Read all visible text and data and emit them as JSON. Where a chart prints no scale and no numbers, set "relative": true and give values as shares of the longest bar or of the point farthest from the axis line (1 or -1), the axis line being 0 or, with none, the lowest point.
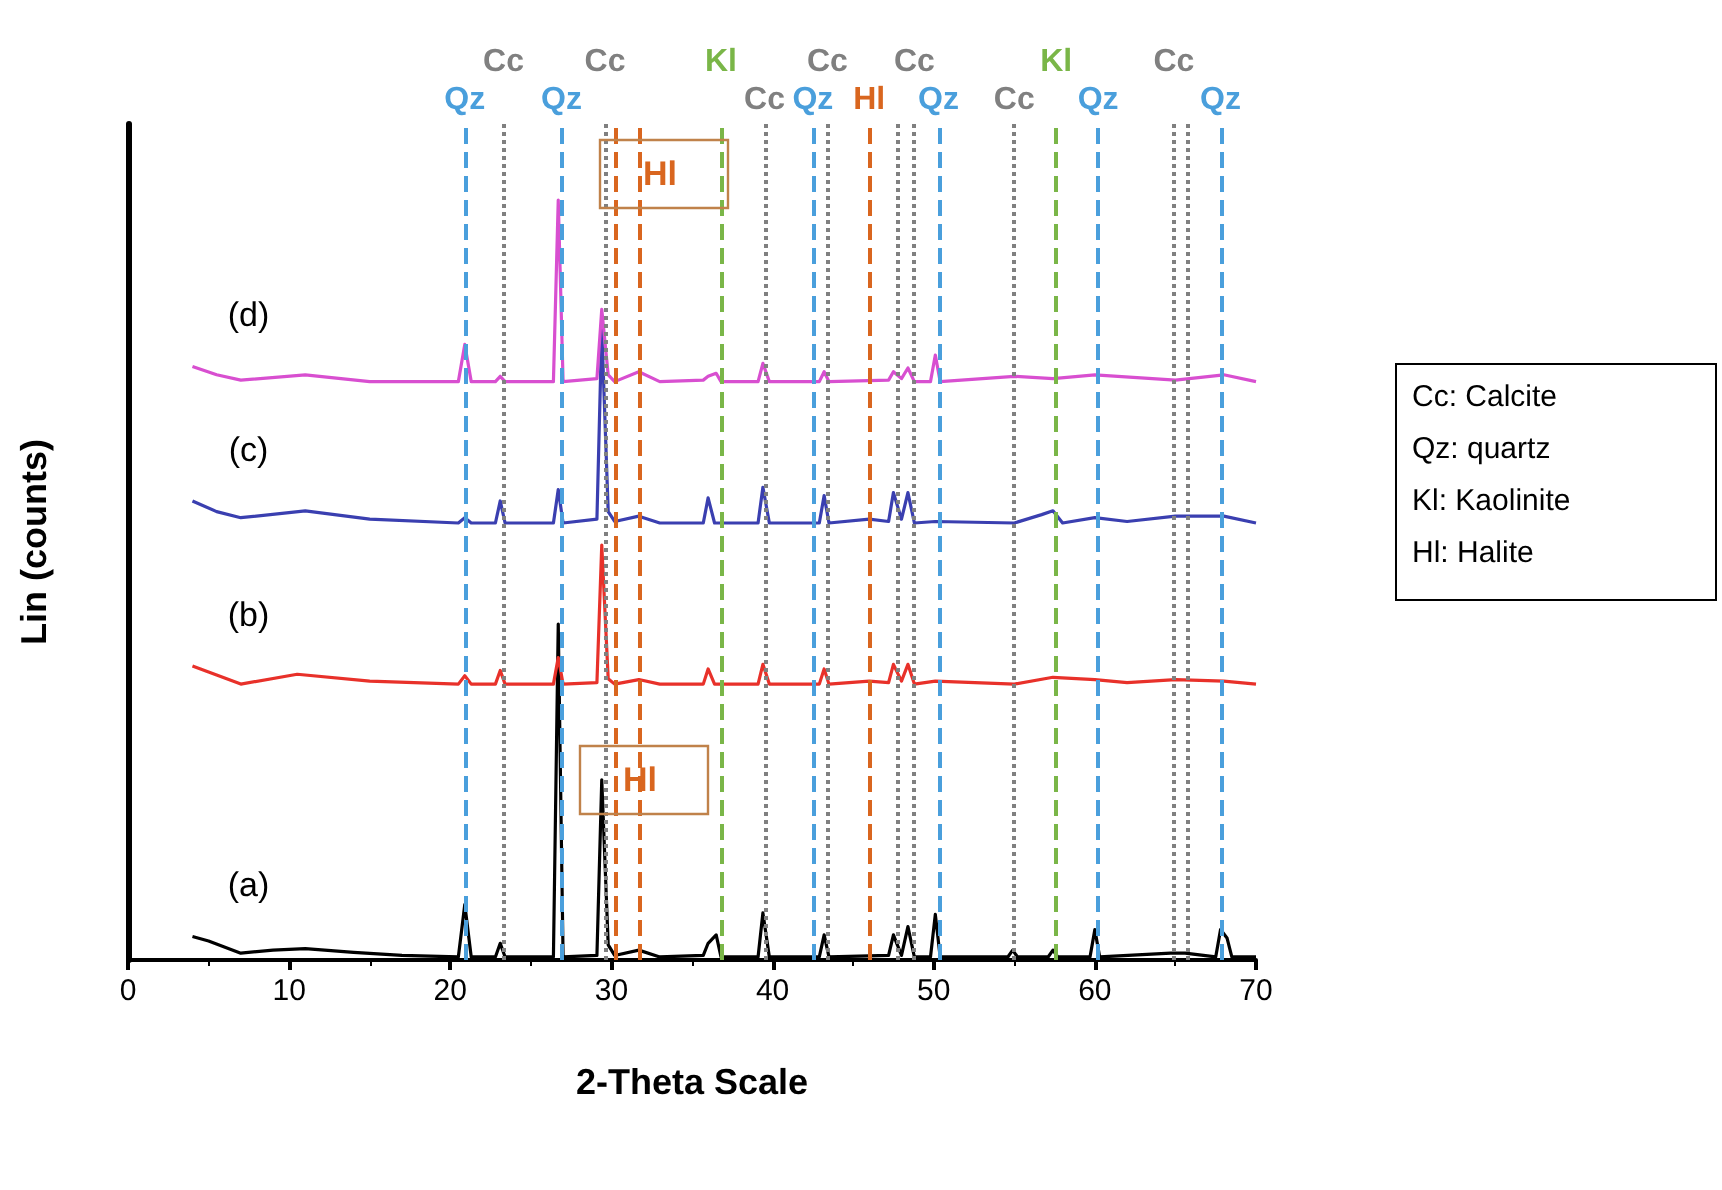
{
  "chart_data": {
    "type": "line",
    "relative": true,
    "xlabel": "2-Theta Scale",
    "ylabel": "Lin (counts)",
    "xlim": [
      0,
      70
    ],
    "xticks": [
      0,
      10,
      20,
      30,
      40,
      50,
      60,
      70
    ],
    "grid": false,
    "legend": false,
    "marker": "none",
    "line_style": "solid",
    "series": [
      {
        "name": "(a)",
        "color": "#000000",
        "x": [
          4,
          5,
          7,
          9,
          11,
          14,
          17,
          20.5,
          20.9,
          21.3,
          22.8,
          23.1,
          23.4,
          26.4,
          26.7,
          27.0,
          29.1,
          29.4,
          29.8,
          30.2,
          31.7,
          33,
          35.7,
          36.0,
          36.5,
          36.8,
          39.1,
          39.4,
          39.8,
          42.9,
          43.2,
          43.5,
          47.2,
          47.5,
          48.0,
          48.4,
          48.8,
          49.8,
          50.1,
          50.4,
          54.6,
          54.9,
          55.2,
          57.1,
          57.4,
          57.7,
          59.7,
          60.0,
          60.3,
          64.7,
          65.6,
          67.5,
          67.8,
          68.2,
          68.5,
          70
        ],
        "values": [
          0.031,
          0.025,
          0.009,
          0.013,
          0.015,
          0.01,
          0.006,
          0.004,
          0.073,
          0.004,
          0.004,
          0.022,
          0.004,
          0.004,
          0.442,
          0.004,
          0.006,
          0.237,
          0.02,
          0.006,
          0.013,
          0.004,
          0.006,
          0.022,
          0.033,
          0.004,
          0.004,
          0.062,
          0.004,
          0.004,
          0.033,
          0.004,
          0.006,
          0.033,
          0.006,
          0.044,
          0.004,
          0.004,
          0.06,
          0.004,
          0.004,
          0.013,
          0.004,
          0.004,
          0.013,
          0.004,
          0.004,
          0.04,
          0.004,
          0.009,
          0.009,
          0.004,
          0.04,
          0.029,
          0.004,
          0.004
        ]
      },
      {
        "name": "(b)",
        "color": "#e8312a",
        "x": [
          4,
          5.5,
          7,
          10.5,
          15,
          20.5,
          20.9,
          21.3,
          22.8,
          23.1,
          23.4,
          26.4,
          26.7,
          27.0,
          29.1,
          29.4,
          29.8,
          30.2,
          31.7,
          33,
          35.7,
          36.0,
          36.4,
          39.1,
          39.4,
          39.8,
          42.9,
          43.2,
          43.5,
          46,
          47.2,
          47.5,
          48.0,
          48.4,
          48.8,
          50.1,
          55,
          57.4,
          60,
          62,
          65,
          68,
          70
        ],
        "values": [
          0.387,
          0.375,
          0.363,
          0.376,
          0.367,
          0.363,
          0.374,
          0.363,
          0.363,
          0.381,
          0.363,
          0.363,
          0.398,
          0.363,
          0.365,
          0.546,
          0.37,
          0.363,
          0.369,
          0.363,
          0.363,
          0.383,
          0.363,
          0.363,
          0.389,
          0.363,
          0.363,
          0.383,
          0.363,
          0.367,
          0.365,
          0.389,
          0.367,
          0.389,
          0.363,
          0.367,
          0.363,
          0.372,
          0.369,
          0.365,
          0.369,
          0.367,
          0.363
        ]
      },
      {
        "name": "(c)",
        "color": "#3a3fb0",
        "x": [
          4,
          5.5,
          7,
          11,
          15,
          20.5,
          20.9,
          21.3,
          22.8,
          23.1,
          23.4,
          26.4,
          26.7,
          27.0,
          29.1,
          29.4,
          29.8,
          30.2,
          31.7,
          33,
          35.7,
          36.0,
          36.4,
          39.1,
          39.4,
          39.8,
          42.9,
          43.2,
          43.5,
          46,
          47.2,
          47.5,
          48.0,
          48.4,
          48.8,
          50.1,
          55,
          56.7,
          57.4,
          58,
          60,
          62,
          65,
          68,
          70
        ],
        "values": [
          0.604,
          0.59,
          0.582,
          0.591,
          0.58,
          0.575,
          0.582,
          0.575,
          0.575,
          0.604,
          0.575,
          0.575,
          0.619,
          0.575,
          0.58,
          0.83,
          0.59,
          0.577,
          0.584,
          0.575,
          0.575,
          0.608,
          0.575,
          0.575,
          0.622,
          0.575,
          0.575,
          0.611,
          0.575,
          0.58,
          0.577,
          0.615,
          0.58,
          0.615,
          0.575,
          0.577,
          0.575,
          0.586,
          0.591,
          0.575,
          0.582,
          0.577,
          0.584,
          0.584,
          0.575
        ]
      },
      {
        "name": "(d)",
        "color": "#d84fd0",
        "x": [
          4,
          5.5,
          7,
          11,
          15,
          20.5,
          20.9,
          21.3,
          22.8,
          23.1,
          23.4,
          26.4,
          26.7,
          27.0,
          29.1,
          29.4,
          29.8,
          30.2,
          31.7,
          33,
          35.7,
          36.0,
          36.5,
          36.8,
          39.1,
          39.4,
          39.8,
          42.9,
          43.2,
          43.5,
          47.2,
          47.5,
          48.0,
          48.4,
          48.8,
          49.8,
          50.1,
          50.4,
          55,
          57.4,
          60,
          65,
          68,
          70
        ],
        "values": [
          0.781,
          0.77,
          0.763,
          0.77,
          0.761,
          0.761,
          0.81,
          0.761,
          0.761,
          0.768,
          0.761,
          0.761,
          1.0,
          0.761,
          0.765,
          0.856,
          0.77,
          0.761,
          0.774,
          0.761,
          0.763,
          0.768,
          0.772,
          0.761,
          0.761,
          0.785,
          0.761,
          0.761,
          0.774,
          0.761,
          0.763,
          0.774,
          0.765,
          0.779,
          0.761,
          0.761,
          0.796,
          0.761,
          0.768,
          0.765,
          0.77,
          0.763,
          0.77,
          0.761
        ]
      }
    ],
    "ref_lines": [
      {
        "axis": "x",
        "value": 20.9,
        "label": "Qz",
        "color": "#4a9fdc",
        "line_style": "dashed"
      },
      {
        "axis": "x",
        "value": 26.9,
        "label": "Qz",
        "color": "#4a9fdc",
        "line_style": "dashed"
      },
      {
        "axis": "x",
        "value": 42.5,
        "label": "Qz",
        "color": "#4a9fdc",
        "line_style": "dashed"
      },
      {
        "axis": "x",
        "value": 50.3,
        "label": "Qz",
        "color": "#4a9fdc",
        "line_style": "dashed"
      },
      {
        "axis": "x",
        "value": 60.2,
        "label": "Qz",
        "color": "#4a9fdc",
        "line_style": "dashed"
      },
      {
        "axis": "x",
        "value": 67.8,
        "label": "Qz",
        "color": "#4a9fdc",
        "line_style": "dashed"
      },
      {
        "axis": "x",
        "value": 23.3,
        "label": "Cc",
        "color": "#808080",
        "line_style": "dotted"
      },
      {
        "axis": "x",
        "value": 29.6,
        "label": "Cc",
        "color": "#808080",
        "line_style": "dotted"
      },
      {
        "axis": "x",
        "value": 39.5,
        "label": "Cc",
        "color": "#808080",
        "line_style": "dotted"
      },
      {
        "axis": "x",
        "value": 43.4,
        "label": "Cc",
        "color": "#808080",
        "line_style": "dotted"
      },
      {
        "axis": "x",
        "value": 47.7,
        "label": null,
        "color": "#808080",
        "line_style": "dotted"
      },
      {
        "axis": "x",
        "value": 48.8,
        "label": "Cc",
        "color": "#808080",
        "line_style": "dotted"
      },
      {
        "axis": "x",
        "value": 55.0,
        "label": "Cc",
        "color": "#808080",
        "line_style": "dotted"
      },
      {
        "axis": "x",
        "value": 64.9,
        "label": "Cc",
        "color": "#808080",
        "line_style": "dotted"
      },
      {
        "axis": "x",
        "value": 65.7,
        "label": null,
        "color": "#808080",
        "line_style": "dotted"
      },
      {
        "axis": "x",
        "value": 31.7,
        "label": null,
        "color": "#d9661f",
        "line_style": "dashed"
      },
      {
        "axis": "x",
        "value": 30.2,
        "label": null,
        "color": "#d9661f",
        "line_style": "dashed"
      },
      {
        "axis": "x",
        "value": 46.0,
        "label": "Hl",
        "color": "#d9661f",
        "line_style": "dashed"
      },
      {
        "axis": "x",
        "value": 36.8,
        "label": "Kl",
        "color": "#7ab648",
        "line_style": "dashed"
      },
      {
        "axis": "x",
        "value": 57.6,
        "label": "Kl",
        "color": "#7ab648",
        "line_style": "dashed"
      }
    ],
    "annotations": [
      "Hl",
      "Hl",
      "Cc: Calcite",
      "Qz: quartz",
      "Kl: Kaolinite",
      "Hl: Halite"
    ]
  }
}
